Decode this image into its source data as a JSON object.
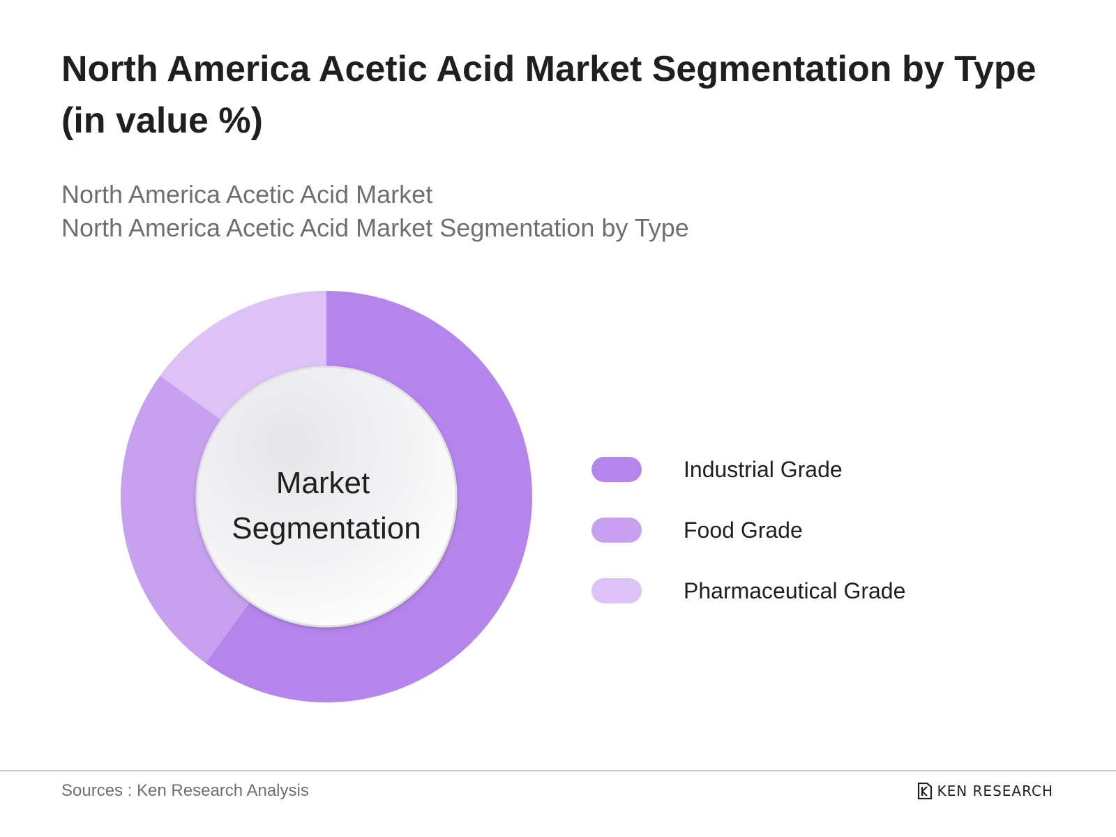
{
  "header": {
    "title": "North America Acetic Acid Market Segmentation by Type (in value %)",
    "subtitle_line1": "North America Acetic Acid Market",
    "subtitle_line2": "North America Acetic Acid Market Segmentation by Type"
  },
  "chart_data": {
    "type": "pie",
    "donut": true,
    "center_label": [
      "Market",
      "Segmentation"
    ],
    "categories": [
      "Industrial Grade",
      "Food Grade",
      "Pharmaceutical Grade"
    ],
    "values": [
      60,
      25,
      15
    ],
    "colors": [
      "#b585ec",
      "#c7a1ef",
      "#dcc2f7"
    ],
    "legend_position": "right"
  },
  "footer": {
    "source": "Sources : Ken Research Analysis",
    "brand": "KEN RESEARCH"
  }
}
